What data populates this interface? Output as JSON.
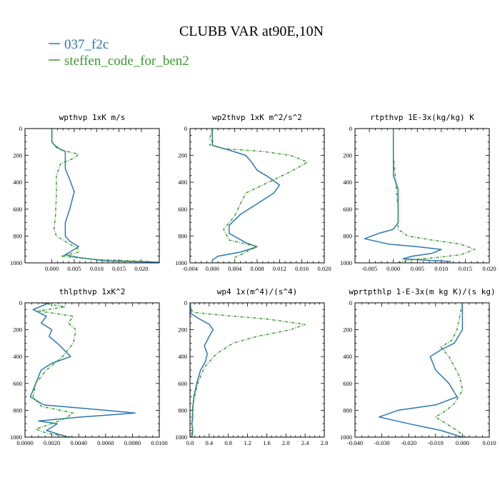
{
  "figure": {
    "title": "CLUBB VAR at90E,10N"
  },
  "colors": {
    "series_1": "#2a78b0",
    "series_2": "#3a9a2e"
  },
  "legend": [
    {
      "name": "037_f2c",
      "style": "solid"
    },
    {
      "name": "steffen_code_for_ben2",
      "style": "dashed"
    }
  ],
  "chart_data": [
    {
      "type": "line",
      "title": "wpthvp 1xK m/s",
      "xlabel": "",
      "ylabel": "",
      "xlim": [
        -0.006,
        0.024
      ],
      "ylim": [
        1000,
        0
      ],
      "xticks": [
        0.0,
        0.005,
        0.01,
        0.015,
        0.02
      ],
      "xticklabels": [
        "0.000",
        "0.005",
        "0.010",
        "0.015",
        "0.020"
      ],
      "yticks": [
        0,
        200,
        400,
        600,
        800,
        1000
      ],
      "series": [
        {
          "name": "037_f2c",
          "points": [
            [
              0,
              0
            ],
            [
              0,
              100
            ],
            [
              0.001,
              140
            ],
            [
              0.003,
              170
            ],
            [
              0.003,
              300
            ],
            [
              0.004,
              380
            ],
            [
              0.005,
              470
            ],
            [
              0.004,
              600
            ],
            [
              0.003,
              700
            ],
            [
              0.003,
              800
            ],
            [
              0.004,
              840
            ],
            [
              0.006,
              880
            ],
            [
              0.004,
              920
            ],
            [
              0.003,
              940
            ],
            [
              0.006,
              960
            ],
            [
              0.012,
              985
            ],
            [
              0.024,
              995
            ]
          ]
        },
        {
          "name": "steffen_code_for_ben2",
          "points": [
            [
              0,
              0
            ],
            [
              0,
              100
            ],
            [
              0.002,
              160
            ],
            [
              0.006,
              190
            ],
            [
              0.005,
              220
            ],
            [
              0.002,
              260
            ],
            [
              0.001,
              350
            ],
            [
              0.001,
              500
            ],
            [
              0.0008,
              650
            ],
            [
              0.0005,
              750
            ],
            [
              0.001,
              800
            ],
            [
              0.004,
              860
            ],
            [
              0.006,
              900
            ],
            [
              0.006,
              920
            ],
            [
              0.002,
              950
            ],
            [
              0.01,
              975
            ],
            [
              0.022,
              990
            ]
          ]
        }
      ]
    },
    {
      "type": "line",
      "title": "wp2thvp 1xK m^2/s^2",
      "xlabel": "",
      "ylabel": "",
      "xlim": [
        -0.004,
        0.02
      ],
      "ylim": [
        1000,
        0
      ],
      "xticks": [
        -0.004,
        0.0,
        0.004,
        0.008,
        0.012,
        0.016,
        0.02
      ],
      "xticklabels": [
        "-0.004",
        "0.000",
        "0.004",
        "0.008",
        "0.012",
        "0.016",
        "0.020"
      ],
      "yticks": [
        0,
        200,
        400,
        600,
        800,
        1000
      ],
      "series": [
        {
          "name": "037_f2c",
          "points": [
            [
              0,
              0
            ],
            [
              0,
              100
            ],
            [
              0,
              125
            ],
            [
              0.003,
              160
            ],
            [
              0.006,
              200
            ],
            [
              0.007,
              250
            ],
            [
              0.008,
              310
            ],
            [
              0.01,
              360
            ],
            [
              0.012,
              420
            ],
            [
              0.011,
              480
            ],
            [
              0.008,
              560
            ],
            [
              0.005,
              640
            ],
            [
              0.003,
              720
            ],
            [
              0.003,
              780
            ],
            [
              0.006,
              850
            ],
            [
              0.008,
              880
            ],
            [
              0.005,
              920
            ],
            [
              0.001,
              950
            ],
            [
              0,
              980
            ],
            [
              0,
              1000
            ]
          ]
        },
        {
          "name": "steffen_code_for_ben2",
          "points": [
            [
              0,
              0
            ],
            [
              -0.0005,
              80
            ],
            [
              0.0002,
              100
            ],
            [
              -0.0005,
              120
            ],
            [
              0.002,
              150
            ],
            [
              0.009,
              170
            ],
            [
              0.014,
              200
            ],
            [
              0.017,
              250
            ],
            [
              0.014,
              320
            ],
            [
              0.01,
              400
            ],
            [
              0.006,
              480
            ],
            [
              0.005,
              560
            ],
            [
              0.004,
              650
            ],
            [
              0.002,
              750
            ],
            [
              0.003,
              830
            ],
            [
              0.008,
              880
            ],
            [
              0.006,
              920
            ],
            [
              0.004,
              960
            ],
            [
              0.004,
              1000
            ]
          ]
        }
      ]
    },
    {
      "type": "line",
      "title": "rtpthvp 1E-3x(kg/kg) K",
      "xlabel": "",
      "ylabel": "",
      "xlim": [
        -0.008,
        0.02
      ],
      "ylim": [
        1000,
        0
      ],
      "xticks": [
        -0.005,
        0.0,
        0.005,
        0.01,
        0.015,
        0.02
      ],
      "xticklabels": [
        "-0.005",
        "0.000",
        "0.005",
        "0.010",
        "0.015",
        "0.020"
      ],
      "yticks": [
        0,
        200,
        400,
        600,
        800,
        1000
      ],
      "series": [
        {
          "name": "037_f2c",
          "points": [
            [
              0,
              0
            ],
            [
              0,
              200
            ],
            [
              0,
              350
            ],
            [
              0.001,
              450
            ],
            [
              0.001,
              600
            ],
            [
              0.001,
              700
            ],
            [
              0,
              750
            ],
            [
              -0.003,
              780
            ],
            [
              -0.006,
              820
            ],
            [
              -0.001,
              860
            ],
            [
              0.005,
              880
            ],
            [
              0.01,
              900
            ],
            [
              0.008,
              930
            ],
            [
              0.004,
              950
            ],
            [
              0.002,
              970
            ],
            [
              0.012,
              990
            ]
          ]
        },
        {
          "name": "steffen_code_for_ben2",
          "points": [
            [
              0,
              0
            ],
            [
              0,
              200
            ],
            [
              0.0005,
              400
            ],
            [
              0.001,
              600
            ],
            [
              0.001,
              750
            ],
            [
              0.003,
              800
            ],
            [
              0.008,
              830
            ],
            [
              0.014,
              860
            ],
            [
              0.017,
              900
            ],
            [
              0.014,
              940
            ],
            [
              0.009,
              960
            ],
            [
              0.003,
              980
            ],
            [
              0.001,
              1000
            ]
          ]
        }
      ]
    },
    {
      "type": "line",
      "title": "thlpthvp 1xK^2",
      "xlabel": "",
      "ylabel": "",
      "xlim": [
        0.0,
        0.01
      ],
      "ylim": [
        1000,
        0
      ],
      "xticks": [
        0.0,
        0.002,
        0.004,
        0.006,
        0.008,
        0.01
      ],
      "xticklabels": [
        "0.0000",
        "0.0020",
        "0.0040",
        "0.0060",
        "0.0080",
        "0.0100"
      ],
      "yticks": [
        0,
        200,
        400,
        600,
        800,
        1000
      ],
      "series": [
        {
          "name": "037_f2c",
          "points": [
            [
              0.0018,
              0
            ],
            [
              0.0006,
              50
            ],
            [
              0.0016,
              100
            ],
            [
              0.0012,
              150
            ],
            [
              0.002,
              200
            ],
            [
              0.0018,
              250
            ],
            [
              0.0024,
              300
            ],
            [
              0.0034,
              400
            ],
            [
              0.002,
              450
            ],
            [
              0.0012,
              500
            ],
            [
              0.0008,
              600
            ],
            [
              0.0004,
              700
            ],
            [
              0.0014,
              760
            ],
            [
              0.006,
              800
            ],
            [
              0.0082,
              820
            ],
            [
              0.0042,
              850
            ],
            [
              0.001,
              880
            ],
            [
              0.0024,
              900
            ],
            [
              0.0016,
              950
            ],
            [
              0.0032,
              1000
            ]
          ]
        },
        {
          "name": "steffen_code_for_ben2",
          "points": [
            [
              0.0012,
              0
            ],
            [
              0.003,
              30
            ],
            [
              0.001,
              60
            ],
            [
              0.0036,
              100
            ],
            [
              0.0032,
              150
            ],
            [
              0.0038,
              200
            ],
            [
              0.0036,
              300
            ],
            [
              0.0028,
              400
            ],
            [
              0.0016,
              500
            ],
            [
              0.0008,
              600
            ],
            [
              0.0006,
              700
            ],
            [
              0.0012,
              770
            ],
            [
              0.0036,
              820
            ],
            [
              0.003,
              860
            ],
            [
              0.002,
              900
            ],
            [
              0.0008,
              940
            ],
            [
              0.0016,
              970
            ],
            [
              0.0034,
              1000
            ]
          ]
        }
      ]
    },
    {
      "type": "line",
      "title": "wp4 1x(m^4)/(s^4)",
      "xlabel": "",
      "ylabel": "",
      "xlim": [
        0.0,
        2.8
      ],
      "ylim": [
        1000,
        0
      ],
      "xticks": [
        0.0,
        0.4,
        0.8,
        1.2,
        1.6,
        2.0,
        2.4,
        2.8
      ],
      "xticklabels": [
        "0.0",
        "0.4",
        "0.8",
        "1.2",
        "1.6",
        "2.0",
        "2.4",
        "2.8"
      ],
      "yticks": [
        0,
        200,
        400,
        600,
        800,
        1000
      ],
      "series": [
        {
          "name": "037_f2c",
          "points": [
            [
              0,
              0
            ],
            [
              0.02,
              80
            ],
            [
              0.2,
              120
            ],
            [
              0.4,
              160
            ],
            [
              0.48,
              200
            ],
            [
              0.4,
              250
            ],
            [
              0.3,
              320
            ],
            [
              0.36,
              380
            ],
            [
              0.32,
              440
            ],
            [
              0.22,
              500
            ],
            [
              0.14,
              600
            ],
            [
              0.08,
              700
            ],
            [
              0.05,
              800
            ],
            [
              0.06,
              850
            ],
            [
              0.04,
              900
            ],
            [
              0.06,
              950
            ],
            [
              0.04,
              1000
            ]
          ]
        },
        {
          "name": "steffen_code_for_ben2",
          "points": [
            [
              0,
              0
            ],
            [
              0.05,
              70
            ],
            [
              0.6,
              90
            ],
            [
              1.6,
              120
            ],
            [
              2.4,
              160
            ],
            [
              2.1,
              200
            ],
            [
              1.4,
              250
            ],
            [
              0.9,
              300
            ],
            [
              0.55,
              380
            ],
            [
              0.3,
              480
            ],
            [
              0.16,
              600
            ],
            [
              0.08,
              720
            ],
            [
              0.05,
              820
            ],
            [
              0.04,
              900
            ],
            [
              0.05,
              950
            ],
            [
              0.02,
              1000
            ]
          ]
        }
      ]
    },
    {
      "type": "line",
      "title": "wprtpthlp 1-E-3x(m kg K)/(s kg)",
      "xlabel": "",
      "ylabel": "",
      "xlim": [
        -0.04,
        0.01
      ],
      "ylim": [
        1000,
        0
      ],
      "xticks": [
        -0.04,
        -0.03,
        -0.02,
        -0.01,
        0.0,
        0.01
      ],
      "xticklabels": [
        "-0.040",
        "-0.030",
        "-0.020",
        "-0.010",
        "0.000",
        "0.010"
      ],
      "yticks": [
        0,
        200,
        400,
        600,
        800,
        1000
      ],
      "series": [
        {
          "name": "037_f2c",
          "points": [
            [
              0,
              0
            ],
            [
              0,
              200
            ],
            [
              -0.003,
              300
            ],
            [
              -0.008,
              350
            ],
            [
              -0.012,
              400
            ],
            [
              -0.01,
              500
            ],
            [
              -0.005,
              600
            ],
            [
              -0.002,
              700
            ],
            [
              -0.01,
              760
            ],
            [
              -0.024,
              800
            ],
            [
              -0.031,
              850
            ],
            [
              -0.02,
              900
            ],
            [
              -0.008,
              950
            ],
            [
              0,
              1000
            ]
          ]
        },
        {
          "name": "steffen_code_for_ben2",
          "points": [
            [
              0,
              0
            ],
            [
              -0.002,
              200
            ],
            [
              -0.004,
              280
            ],
            [
              -0.008,
              330
            ],
            [
              -0.005,
              400
            ],
            [
              -0.001,
              550
            ],
            [
              0,
              650
            ],
            [
              -0.003,
              750
            ],
            [
              -0.006,
              800
            ],
            [
              -0.01,
              850
            ],
            [
              -0.006,
              900
            ],
            [
              -0.002,
              950
            ],
            [
              0.001,
              1000
            ]
          ]
        }
      ]
    }
  ]
}
